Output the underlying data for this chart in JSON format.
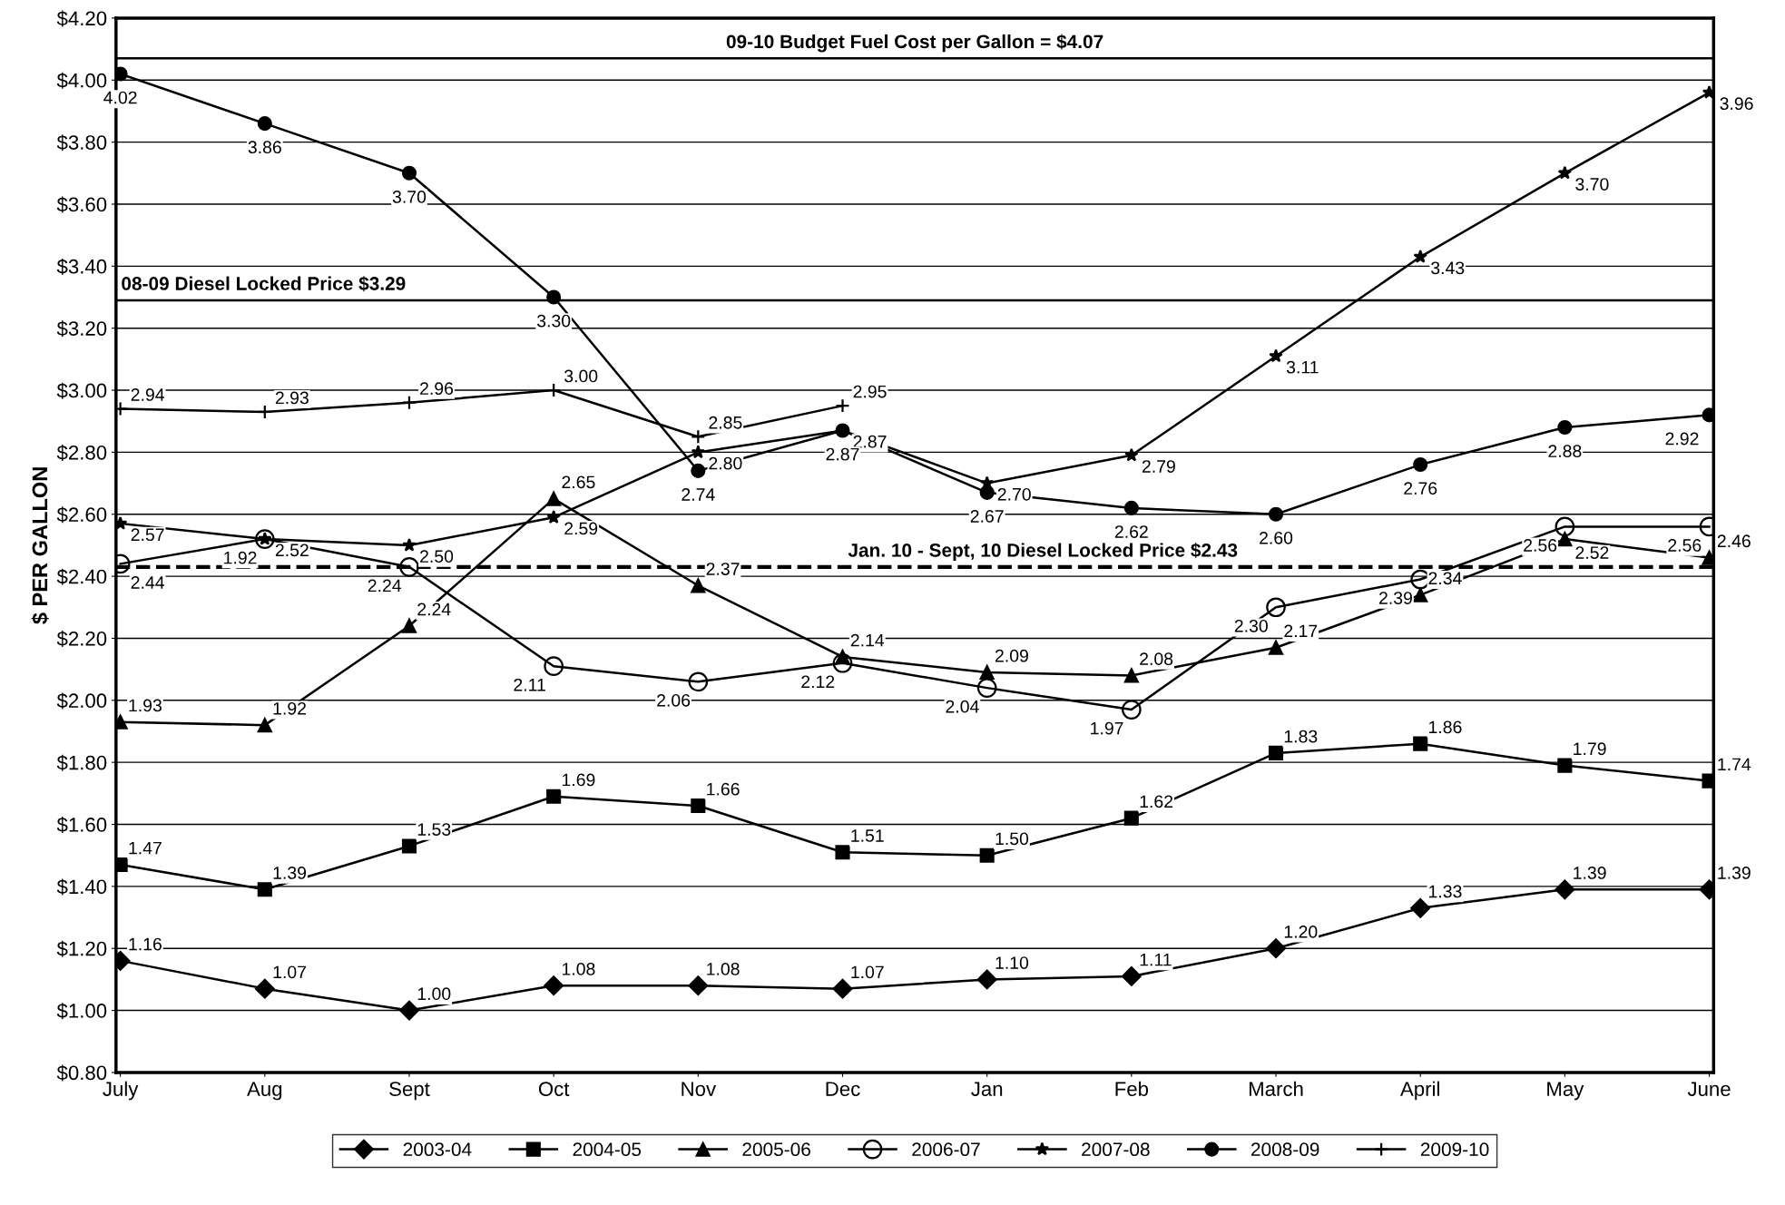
{
  "chart_data": {
    "type": "line",
    "ylabel": "$ PER GALLON",
    "categories": [
      "July",
      "Aug",
      "Sept",
      "Oct",
      "Nov",
      "Dec",
      "Jan",
      "Feb",
      "March",
      "April",
      "May",
      "June"
    ],
    "ylim": [
      0.8,
      4.2
    ],
    "yticks": [
      {
        "value": 0.8,
        "label": "$0.80"
      },
      {
        "value": 1.0,
        "label": "$1.00"
      },
      {
        "value": 1.2,
        "label": "$1.20"
      },
      {
        "value": 1.4,
        "label": "$1.40"
      },
      {
        "value": 1.6,
        "label": "$1.60"
      },
      {
        "value": 1.8,
        "label": "$1.80"
      },
      {
        "value": 2.0,
        "label": "$2.00"
      },
      {
        "value": 2.2,
        "label": "$2.20"
      },
      {
        "value": 2.4,
        "label": "$2.40"
      },
      {
        "value": 2.6,
        "label": "$2.60"
      },
      {
        "value": 2.8,
        "label": "$2.80"
      },
      {
        "value": 3.0,
        "label": "$3.00"
      },
      {
        "value": 3.2,
        "label": "$3.20"
      },
      {
        "value": 3.4,
        "label": "$3.40"
      },
      {
        "value": 3.6,
        "label": "$3.60"
      },
      {
        "value": 3.8,
        "label": "$3.80"
      },
      {
        "value": 4.0,
        "label": "$4.00"
      },
      {
        "value": 4.2,
        "label": "$4.20"
      }
    ],
    "grid": "y",
    "legend": "bottom",
    "line_style": "solid",
    "series": [
      {
        "name": "2003-04",
        "color": "#000000",
        "marker": "diamond",
        "values": [
          1.16,
          1.07,
          1.0,
          1.08,
          1.08,
          1.07,
          1.1,
          1.11,
          1.2,
          1.33,
          1.39,
          1.39
        ],
        "value_labels": [
          "1.16",
          "1.07",
          "1.00",
          "1.08",
          "1.08",
          "1.07",
          "1.10",
          "1.11",
          "1.20",
          "1.33",
          "1.39",
          "1.39"
        ]
      },
      {
        "name": "2004-05",
        "color": "#000000",
        "marker": "square",
        "values": [
          1.47,
          1.39,
          1.53,
          1.69,
          1.66,
          1.51,
          1.5,
          1.62,
          1.83,
          1.86,
          1.79,
          1.74
        ],
        "value_labels": [
          "1.47",
          "1.39",
          "1.53",
          "1.69",
          "1.66",
          "1.51",
          "1.50",
          "1.62",
          "1.83",
          "1.86",
          "1.79",
          "1.74"
        ]
      },
      {
        "name": "2005-06",
        "color": "#000000",
        "marker": "triangle",
        "values": [
          1.93,
          1.92,
          2.24,
          2.65,
          2.37,
          2.14,
          2.09,
          2.08,
          2.17,
          2.34,
          2.52,
          2.46
        ],
        "value_labels": [
          "1.93",
          "1.92",
          "2.24",
          "2.65",
          "2.37",
          "2.14",
          "2.09",
          "2.08",
          "2.17",
          "2.34",
          "2.52",
          "2.46"
        ]
      },
      {
        "name": "2006-07",
        "color": "#000000",
        "marker": "circle_open",
        "values": [
          2.44,
          2.52,
          2.43,
          2.11,
          2.06,
          2.12,
          2.04,
          1.97,
          2.3,
          2.39,
          2.56,
          2.56
        ],
        "value_labels": [
          "2.44",
          null,
          null,
          "2.11",
          "2.06",
          "2.12",
          "2.04",
          "1.97",
          "2.30",
          "2.39",
          "2.56",
          "2.56"
        ]
      },
      {
        "name": "2007-08",
        "color": "#000000",
        "marker": "star",
        "values": [
          2.57,
          2.52,
          2.5,
          2.59,
          2.8,
          2.87,
          2.7,
          2.79,
          3.11,
          3.43,
          3.7,
          3.96
        ],
        "value_labels": [
          "2.57",
          "2.52",
          "2.50",
          "2.59",
          "2.80",
          "2.87",
          "2.70",
          "2.79",
          "3.11",
          "3.43",
          "3.70",
          "3.96"
        ]
      },
      {
        "name": "2008-09",
        "color": "#000000",
        "marker": "circle",
        "values": [
          4.02,
          3.86,
          3.7,
          3.3,
          2.74,
          2.87,
          2.67,
          2.62,
          2.6,
          2.76,
          2.88,
          2.92
        ],
        "value_labels": [
          "4.02",
          "3.86",
          "3.70",
          "3.30",
          "2.74",
          "2.87",
          "2.67",
          "2.62",
          "2.60",
          "2.76",
          "2.88",
          "2.92"
        ]
      },
      {
        "name": "2009-10",
        "color": "#000000",
        "marker": "cross",
        "values": [
          2.94,
          2.93,
          2.96,
          3.0,
          2.85,
          2.95,
          null,
          null,
          null,
          null,
          null,
          null
        ],
        "value_labels": [
          "2.94",
          "2.93",
          "2.96",
          "3.00",
          "2.85",
          "2.95",
          null,
          null,
          null,
          null,
          null,
          null
        ]
      }
    ],
    "annotations": [
      "1.92",
      "2.24"
    ],
    "ref_lines": [
      {
        "axis": "y",
        "value": 4.07,
        "label": "09-10 Budget Fuel Cost per Gallon = $4.07",
        "color": "#000000",
        "line_style": "solid"
      },
      {
        "axis": "y",
        "value": 3.29,
        "label": "08-09 Diesel Locked Price $3.29",
        "color": "#000000",
        "line_style": "solid"
      },
      {
        "axis": "y",
        "value": 2.43,
        "label": "Jan. 10 - Sept, 10 Diesel Locked Price $2.43",
        "color": "#000000",
        "line_style": "dashed"
      }
    ]
  }
}
